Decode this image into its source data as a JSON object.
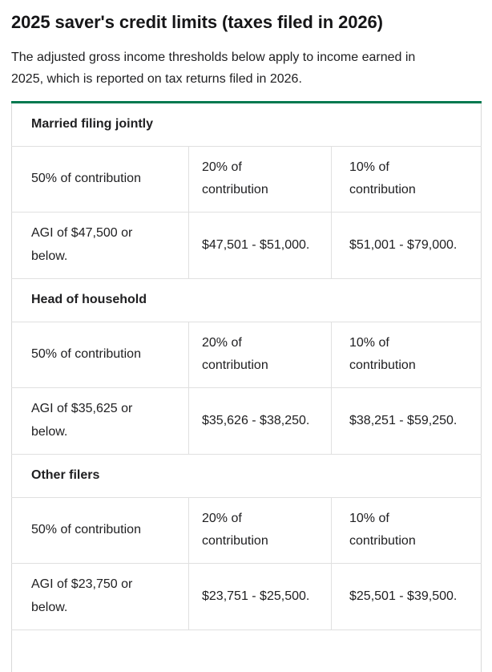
{
  "page": {
    "title": "2025 saver's credit limits (taxes filed in 2026)",
    "intro": "The adjusted gross income thresholds below apply to income earned in 2025, which is reported on tax returns filed in 2026."
  },
  "colors": {
    "table_accent_green": "#00794f",
    "table_border_gray": "#e0e0e0",
    "text": "#202022"
  },
  "table": {
    "sections": [
      {
        "label": "Married filing jointly",
        "rate_headers": [
          "50% of contribution",
          "20% of contribution",
          "10% of contribution"
        ],
        "agi_values": [
          "AGI of $47,500 or below.",
          "$47,501 - $51,000.",
          "$51,001 - $79,000."
        ]
      },
      {
        "label": "Head of household",
        "rate_headers": [
          "50% of contribution",
          "20% of contribution",
          "10% of contribution"
        ],
        "agi_values": [
          "AGI of $35,625 or below.",
          "$35,626 - $38,250.",
          "$38,251 - $59,250."
        ]
      },
      {
        "label": "Other filers",
        "rate_headers": [
          "50% of contribution",
          "20% of contribution",
          "10% of contribution"
        ],
        "agi_values": [
          "AGI of $23,750 or below.",
          "$23,751 - $25,500.",
          "$25,501 - $39,500."
        ]
      }
    ]
  }
}
